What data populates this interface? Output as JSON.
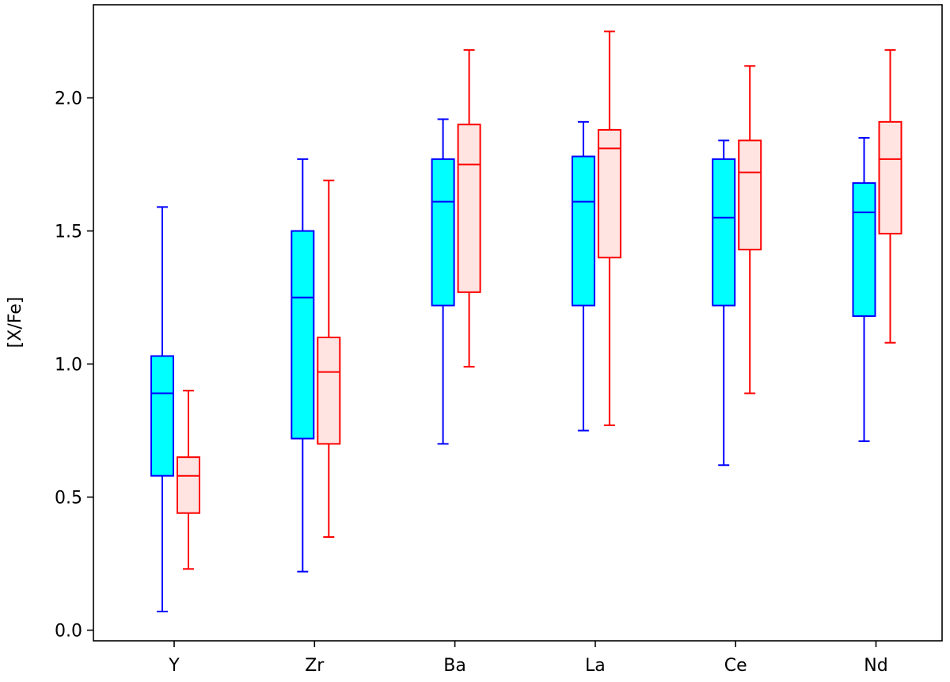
{
  "chart_data": {
    "type": "box",
    "title": "",
    "xlabel": "",
    "ylabel": "[X/Fe]",
    "ylim": [
      -0.04,
      2.35
    ],
    "yticks": [
      0.0,
      0.5,
      1.0,
      1.5,
      2.0
    ],
    "ytick_labels": [
      "0.0",
      "0.5",
      "1.0",
      "1.5",
      "2.0"
    ],
    "categories": [
      "Y",
      "Zr",
      "Ba",
      "La",
      "Ce",
      "Nd"
    ],
    "grid": false,
    "legend": "none",
    "series": [
      {
        "color": "#0000ff",
        "fill": "#00ffff",
        "boxes": [
          {
            "whislo": 0.07,
            "q1": 0.58,
            "med": 0.89,
            "q3": 1.03,
            "whishi": 1.59
          },
          {
            "whislo": 0.22,
            "q1": 0.72,
            "med": 1.25,
            "q3": 1.5,
            "whishi": 1.77
          },
          {
            "whislo": 0.7,
            "q1": 1.22,
            "med": 1.61,
            "q3": 1.77,
            "whishi": 1.92
          },
          {
            "whislo": 0.75,
            "q1": 1.22,
            "med": 1.61,
            "q3": 1.78,
            "whishi": 1.91
          },
          {
            "whislo": 0.62,
            "q1": 1.22,
            "med": 1.55,
            "q3": 1.77,
            "whishi": 1.84
          },
          {
            "whislo": 0.71,
            "q1": 1.18,
            "med": 1.57,
            "q3": 1.68,
            "whishi": 1.85
          }
        ]
      },
      {
        "color": "#ff0000",
        "fill": "#ffe4e1",
        "boxes": [
          {
            "whislo": 0.23,
            "q1": 0.44,
            "med": 0.58,
            "q3": 0.65,
            "whishi": 0.9
          },
          {
            "whislo": 0.35,
            "q1": 0.7,
            "med": 0.97,
            "q3": 1.1,
            "whishi": 1.69
          },
          {
            "whislo": 0.99,
            "q1": 1.27,
            "med": 1.75,
            "q3": 1.9,
            "whishi": 2.18
          },
          {
            "whislo": 0.77,
            "q1": 1.4,
            "med": 1.81,
            "q3": 1.88,
            "whishi": 2.25
          },
          {
            "whislo": 0.89,
            "q1": 1.43,
            "med": 1.72,
            "q3": 1.84,
            "whishi": 2.12
          },
          {
            "whislo": 1.08,
            "q1": 1.49,
            "med": 1.77,
            "q3": 1.91,
            "whishi": 2.18
          }
        ]
      }
    ]
  }
}
